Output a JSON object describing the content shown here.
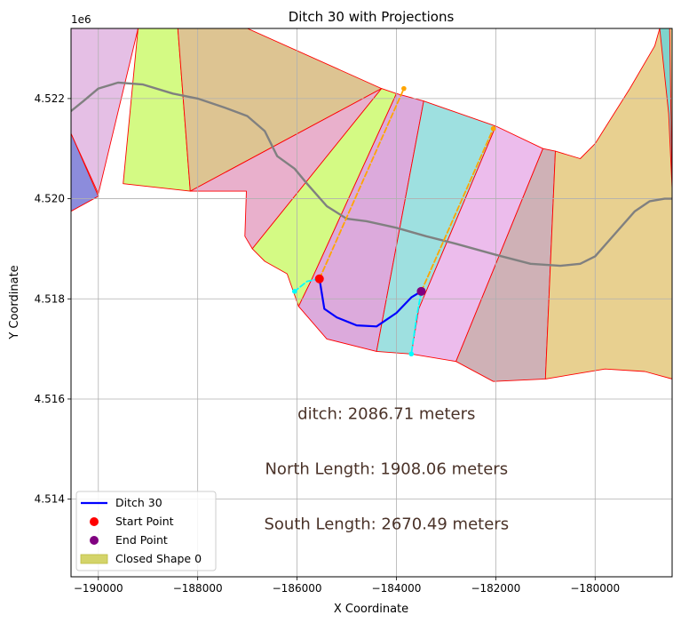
{
  "chart_data": {
    "type": "line",
    "title": "Ditch 30 with Projections",
    "xlabel": "X Coordinate",
    "ylabel": "Y Coordinate",
    "y_offset_label": "1e6",
    "xlim": [
      -190550,
      -178450
    ],
    "ylim": [
      4512.45,
      4523.4
    ],
    "x_ticks": [
      -190000,
      -188000,
      -186000,
      -184000,
      -182000,
      -180000
    ],
    "x_tick_labels": [
      "−190000",
      "−188000",
      "−186000",
      "−184000",
      "−182000",
      "−180000"
    ],
    "y_ticks": [
      4514,
      4516,
      4518,
      4520,
      4522
    ],
    "y_tick_labels": [
      "4.514",
      "4.516",
      "4.518",
      "4.520",
      "4.522"
    ],
    "grid": true,
    "legend_position": "lower-left",
    "legend": [
      {
        "label": "Ditch 30",
        "kind": "line",
        "color": "#0000ff"
      },
      {
        "label": "Start Point",
        "kind": "dot",
        "color": "#ff0000"
      },
      {
        "label": "End Point",
        "kind": "dot",
        "color": "#800080"
      },
      {
        "label": "Closed Shape 0",
        "kind": "patch",
        "color": "#d4d46a"
      }
    ],
    "annotations": [
      {
        "text": "ditch: 2086.71 meters",
        "x": -184200,
        "y": 4515.6
      },
      {
        "text": "North Length: 1908.06 meters",
        "x": -184200,
        "y": 4514.5
      },
      {
        "text": "South Length: 2670.49 meters",
        "x": -184200,
        "y": 4513.4
      }
    ],
    "shapes": [
      {
        "color": "#e5bfe5",
        "points": [
          [
            -190550,
            4523.4
          ],
          [
            -189200,
            4523.4
          ],
          [
            -190000,
            4520.1
          ],
          [
            -190550,
            4521.3
          ]
        ]
      },
      {
        "color": "#8c8cdc",
        "points": [
          [
            -190550,
            4521.3
          ],
          [
            -190000,
            4520.05
          ],
          [
            -190550,
            4519.75
          ]
        ]
      },
      {
        "color": "#d4fa84",
        "points": [
          [
            -189200,
            4523.4
          ],
          [
            -188400,
            4523.4
          ],
          [
            -188150,
            4520.15
          ],
          [
            -189500,
            4520.3
          ]
        ]
      },
      {
        "color": "#ddc492",
        "points": [
          [
            -188400,
            4523.4
          ],
          [
            -187000,
            4523.4
          ],
          [
            -184300,
            4522.2
          ],
          [
            -188150,
            4520.15
          ]
        ]
      },
      {
        "color": "#e9b0cc",
        "points": [
          [
            -188150,
            4520.15
          ],
          [
            -184300,
            4522.2
          ],
          [
            -186900,
            4519.0
          ],
          [
            -187050,
            4519.25
          ],
          [
            -187020,
            4520.15
          ]
        ]
      },
      {
        "color": "#d4fa84",
        "points": [
          [
            -184300,
            4522.2
          ],
          [
            -184000,
            4522.1
          ],
          [
            -185700,
            4518.4
          ],
          [
            -185970,
            4517.85
          ],
          [
            -186200,
            4518.5
          ],
          [
            -186650,
            4518.75
          ],
          [
            -186900,
            4519.0
          ]
        ]
      },
      {
        "color": "#dcaadc",
        "points": [
          [
            -184000,
            4522.1
          ],
          [
            -183450,
            4521.95
          ],
          [
            -184400,
            4516.95
          ],
          [
            -185400,
            4517.2
          ],
          [
            -185970,
            4517.85
          ],
          [
            -185700,
            4518.4
          ]
        ]
      },
      {
        "color": "#9ee0e0",
        "points": [
          [
            -183450,
            4521.95
          ],
          [
            -182000,
            4521.45
          ],
          [
            -183550,
            4517.8
          ],
          [
            -183700,
            4516.9
          ],
          [
            -184400,
            4516.95
          ]
        ]
      },
      {
        "color": "#ecbcec",
        "points": [
          [
            -182000,
            4521.45
          ],
          [
            -181050,
            4521.0
          ],
          [
            -182800,
            4516.75
          ],
          [
            -183700,
            4516.9
          ],
          [
            -183550,
            4517.8
          ]
        ]
      },
      {
        "color": "#cfb1b6",
        "points": [
          [
            -181050,
            4521.0
          ],
          [
            -180800,
            4520.95
          ],
          [
            -181000,
            4516.4
          ],
          [
            -182050,
            4516.35
          ],
          [
            -182800,
            4516.75
          ]
        ]
      },
      {
        "color": "#e8d090",
        "points": [
          [
            -180800,
            4520.95
          ],
          [
            -180300,
            4520.8
          ],
          [
            -180000,
            4521.1
          ],
          [
            -179300,
            4522.2
          ],
          [
            -178800,
            4523.05
          ],
          [
            -178700,
            4523.4
          ],
          [
            -178450,
            4523.4
          ],
          [
            -178450,
            4516.4
          ],
          [
            -179000,
            4516.55
          ],
          [
            -179800,
            4516.6
          ],
          [
            -181000,
            4516.4
          ]
        ]
      },
      {
        "color": "#7fd4cc",
        "points": [
          [
            -178700,
            4523.4
          ],
          [
            -178500,
            4523.4
          ],
          [
            -178450,
            4520.2
          ],
          [
            -178520,
            4521.7
          ]
        ]
      }
    ],
    "series": [
      {
        "name": "",
        "color": "#808080",
        "style": "solid",
        "points": [
          [
            -190550,
            4521.75
          ],
          [
            -190300,
            4521.95
          ],
          [
            -190000,
            4522.2
          ],
          [
            -189600,
            4522.32
          ],
          [
            -189100,
            4522.28
          ],
          [
            -188500,
            4522.1
          ],
          [
            -188000,
            4522.0
          ],
          [
            -187400,
            4521.8
          ],
          [
            -187000,
            4521.65
          ],
          [
            -186650,
            4521.35
          ],
          [
            -186400,
            4520.85
          ],
          [
            -186050,
            4520.6
          ],
          [
            -185800,
            4520.3
          ],
          [
            -185400,
            4519.85
          ],
          [
            -185000,
            4519.6
          ],
          [
            -184600,
            4519.55
          ],
          [
            -184000,
            4519.42
          ],
          [
            -183400,
            4519.25
          ],
          [
            -182800,
            4519.1
          ],
          [
            -182000,
            4518.88
          ],
          [
            -181300,
            4518.7
          ],
          [
            -180700,
            4518.66
          ],
          [
            -180300,
            4518.7
          ],
          [
            -180000,
            4518.85
          ],
          [
            -179600,
            4519.3
          ],
          [
            -179200,
            4519.75
          ],
          [
            -178900,
            4519.95
          ],
          [
            -178600,
            4520.0
          ],
          [
            -178450,
            4520.0
          ]
        ]
      },
      {
        "name": "Ditch 30",
        "color": "#0000ff",
        "style": "solid",
        "points": [
          [
            -185550,
            4518.4
          ],
          [
            -185450,
            4517.8
          ],
          [
            -185200,
            4517.63
          ],
          [
            -184800,
            4517.47
          ],
          [
            -184400,
            4517.45
          ],
          [
            -184000,
            4517.72
          ],
          [
            -183700,
            4518.03
          ],
          [
            -183500,
            4518.15
          ]
        ]
      },
      {
        "name": "",
        "color": "#ffa500",
        "style": "dashed",
        "points": [
          [
            -185550,
            4518.4
          ],
          [
            -183850,
            4522.2
          ]
        ]
      },
      {
        "name": "",
        "color": "#ffa500",
        "style": "dashed",
        "points": [
          [
            -183500,
            4518.15
          ],
          [
            -182050,
            4521.4
          ]
        ]
      },
      {
        "name": "",
        "color": "#00ffff",
        "style": "dashed",
        "points": [
          [
            -185550,
            4518.4
          ],
          [
            -185800,
            4518.35
          ],
          [
            -186050,
            4518.15
          ]
        ]
      },
      {
        "name": "",
        "color": "#00ffff",
        "style": "dashed",
        "points": [
          [
            -183500,
            4518.15
          ],
          [
            -183600,
            4517.6
          ],
          [
            -183700,
            4516.9
          ]
        ]
      }
    ],
    "markers": [
      {
        "label": "Start Point",
        "x": -185550,
        "y": 4518.4,
        "color": "#ff0000",
        "size": "large"
      },
      {
        "label": "End Point",
        "x": -183500,
        "y": 4518.15,
        "color": "#800080",
        "size": "large"
      },
      {
        "label": "",
        "x": -183850,
        "y": 4522.2,
        "color": "#ffa500",
        "size": "small"
      },
      {
        "label": "",
        "x": -182050,
        "y": 4521.4,
        "color": "#ffa500",
        "size": "small"
      },
      {
        "label": "",
        "x": -186050,
        "y": 4518.15,
        "color": "#00ffff",
        "size": "small"
      },
      {
        "label": "",
        "x": -183700,
        "y": 4516.9,
        "color": "#00ffff",
        "size": "small"
      }
    ]
  }
}
